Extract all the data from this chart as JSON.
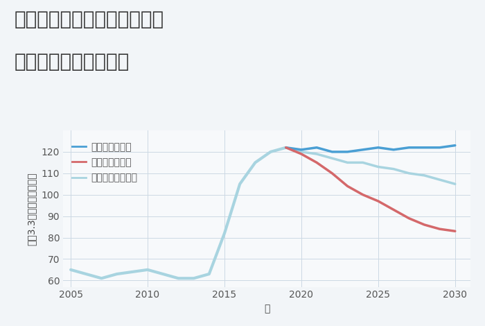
{
  "title_line1": "愛知県名古屋市中村区八社の",
  "title_line2": "中古戸建ての価格推移",
  "xlabel": "年",
  "ylabel": "坪（3.3㎡）単価（万円）",
  "background_color": "#f2f5f8",
  "plot_bg_color": "#f7f9fb",
  "grid_color": "#ccd8e4",
  "years_historical": [
    2005,
    2006,
    2007,
    2008,
    2009,
    2010,
    2011,
    2012,
    2013,
    2014,
    2015,
    2016,
    2017,
    2018,
    2019
  ],
  "values_historical": [
    65,
    63,
    61,
    63,
    64,
    65,
    63,
    61,
    61,
    63,
    82,
    105,
    115,
    120,
    122
  ],
  "years_good": [
    2019,
    2020,
    2021,
    2022,
    2023,
    2024,
    2025,
    2026,
    2027,
    2028,
    2029,
    2030
  ],
  "values_good": [
    122,
    121,
    122,
    120,
    120,
    121,
    122,
    121,
    122,
    122,
    122,
    123
  ],
  "years_bad": [
    2019,
    2020,
    2021,
    2022,
    2023,
    2024,
    2025,
    2026,
    2027,
    2028,
    2029,
    2030
  ],
  "values_bad": [
    122,
    119,
    115,
    110,
    104,
    100,
    97,
    93,
    89,
    86,
    84,
    83
  ],
  "years_normal": [
    2019,
    2020,
    2021,
    2022,
    2023,
    2024,
    2025,
    2026,
    2027,
    2028,
    2029,
    2030
  ],
  "values_normal": [
    122,
    120,
    119,
    117,
    115,
    115,
    113,
    112,
    110,
    109,
    107,
    105
  ],
  "color_good": "#4a9fd4",
  "color_bad": "#d4686a",
  "color_normal": "#a8d4e0",
  "color_historical": "#a8d4e0",
  "legend_good": "グッドシナリオ",
  "legend_bad": "バッドシナリオ",
  "legend_normal": "ノーマルシナリオ",
  "ylim": [
    57,
    130
  ],
  "xlim": [
    2004.5,
    2031
  ],
  "yticks": [
    60,
    70,
    80,
    90,
    100,
    110,
    120
  ],
  "xticks": [
    2005,
    2010,
    2015,
    2020,
    2025,
    2030
  ],
  "linewidth": 2.5,
  "title_fontsize": 20,
  "axis_fontsize": 10,
  "tick_fontsize": 10,
  "legend_fontsize": 10
}
